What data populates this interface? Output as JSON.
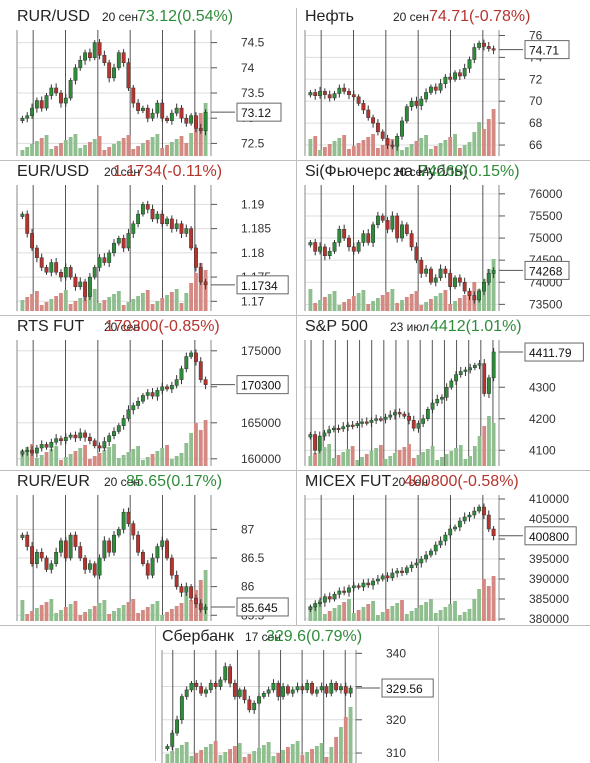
{
  "colors": {
    "up": "#2e8b3a",
    "down": "#b5342e",
    "vol_up": "#8fbf8f",
    "vol_down": "#d48a83",
    "grid": "#555555",
    "hgrid": "#dddddd"
  },
  "panels": [
    {
      "title": "RUR/USD",
      "date": "20 сен",
      "quote": "73.12(0.54%)",
      "quote_color": "#2e8b3a"
    },
    {
      "title": "Нефть",
      "date": "20 сен",
      "quote": "74.71(-0.78%)",
      "quote_color": "#b5342e"
    },
    {
      "title": "EUR/USD",
      "date": "20 сен",
      "quote": "1.1734(-0.11%)",
      "quote_color": "#b5342e"
    },
    {
      "title": "Si(Фьючерс на Рубль)",
      "date": "20 сен",
      "quote": "74268(0.15%)",
      "quote_color": "#2e8b3a"
    },
    {
      "title": "RTS FUT",
      "date": "20 сен",
      "quote": "170300(-0.85%)",
      "quote_color": "#b5342e"
    },
    {
      "title": "S&P 500",
      "date": "23 июл",
      "quote": "4412(1.01%)",
      "quote_color": "#2e8b3a"
    },
    {
      "title": "RUR/EUR",
      "date": "20 сен",
      "quote": "85.65(0.17%)",
      "quote_color": "#2e8b3a"
    },
    {
      "title": "MICEX FUT",
      "date": "20 сен",
      "quote": "400800(-0.58%)",
      "quote_color": "#b5342e"
    },
    {
      "title": "Сбербанк",
      "date": "17 сен",
      "quote": "329.6(0.79%)",
      "quote_color": "#2e8b3a"
    }
  ],
  "chart_data": [
    {
      "type": "candlestick",
      "title": "RUR/USD",
      "yticks": [
        "74.5",
        "74",
        "73.5",
        "73",
        "72.5"
      ],
      "ytick_values": [
        74.5,
        74,
        73.5,
        73,
        72.5
      ],
      "ylim": [
        72.25,
        74.75
      ],
      "last_label": "73.12",
      "last": 73.12,
      "closes": [
        73.0,
        73.05,
        73.2,
        73.35,
        73.2,
        73.45,
        73.6,
        73.5,
        73.3,
        73.4,
        73.75,
        74.0,
        74.15,
        74.3,
        74.2,
        74.5,
        74.25,
        74.1,
        73.8,
        74.0,
        74.3,
        74.1,
        73.6,
        73.3,
        73.15,
        73.2,
        73.0,
        73.1,
        73.3,
        73.0,
        72.95,
        73.1,
        73.2,
        73.0,
        72.9,
        73.05,
        72.8,
        72.75,
        73.12
      ],
      "vertical_lines": 6
    },
    {
      "type": "candlestick",
      "title": "Нефть",
      "yticks": [
        "76",
        "74",
        "72",
        "70",
        "68",
        "66"
      ],
      "ytick_values": [
        76,
        74,
        72,
        70,
        68,
        66
      ],
      "ylim": [
        65,
        76.5
      ],
      "last_label": "74.71",
      "last": 74.71,
      "closes": [
        70.8,
        70.5,
        70.9,
        70.6,
        70.3,
        70.7,
        71.2,
        70.9,
        70.6,
        70.4,
        69.8,
        69.2,
        68.5,
        68.0,
        67.2,
        66.6,
        66.0,
        65.9,
        66.8,
        68.2,
        69.5,
        70.0,
        69.6,
        70.2,
        70.8,
        71.3,
        71.0,
        71.6,
        72.2,
        72.0,
        72.6,
        72.3,
        73.0,
        73.8,
        74.9,
        75.3,
        75.0,
        74.8,
        74.71
      ],
      "vertical_lines": 6
    },
    {
      "type": "candlestick",
      "title": "EUR/USD",
      "yticks": [
        "1.19",
        "1.185",
        "1.18",
        "1.175",
        "1.17"
      ],
      "ytick_values": [
        1.19,
        1.185,
        1.18,
        1.175,
        1.17
      ],
      "ylim": [
        1.168,
        1.194
      ],
      "last_label": "1.1734",
      "last": 1.1734,
      "closes": [
        1.188,
        1.184,
        1.181,
        1.179,
        1.177,
        1.176,
        1.178,
        1.176,
        1.175,
        1.177,
        1.175,
        1.173,
        1.174,
        1.171,
        1.175,
        1.177,
        1.179,
        1.178,
        1.18,
        1.182,
        1.183,
        1.181,
        1.184,
        1.186,
        1.188,
        1.19,
        1.189,
        1.187,
        1.188,
        1.186,
        1.187,
        1.185,
        1.186,
        1.184,
        1.185,
        1.181,
        1.177,
        1.174,
        1.1734
      ],
      "vertical_lines": 6
    },
    {
      "type": "candlestick",
      "title": "Si(Фьючерс на Рубль)",
      "yticks": [
        "76000",
        "75500",
        "75000",
        "74500",
        "74000",
        "73500"
      ],
      "ytick_values": [
        76000,
        75500,
        75000,
        74500,
        74000,
        73500
      ],
      "ylim": [
        73350,
        76200
      ],
      "last_label": "74268",
      "last": 74268,
      "closes": [
        74900,
        74700,
        74800,
        74600,
        74700,
        74900,
        75200,
        75000,
        74800,
        74700,
        74900,
        75100,
        74900,
        75300,
        75500,
        75400,
        75200,
        75500,
        75000,
        75300,
        75100,
        74800,
        74500,
        74200,
        74300,
        74000,
        74100,
        74300,
        74200,
        73900,
        74100,
        74000,
        73800,
        73700,
        73600,
        73800,
        74000,
        74200,
        74268
      ],
      "vertical_lines": 6
    },
    {
      "type": "candlestick",
      "title": "RTS FUT",
      "yticks": [
        "175000",
        "170000",
        "165000",
        "160000"
      ],
      "ytick_values": [
        175000,
        170000,
        165000,
        160000
      ],
      "ylim": [
        159000,
        176500
      ],
      "last_label": "170300",
      "last": 170300,
      "closes": [
        161000,
        161200,
        160800,
        161500,
        162000,
        161600,
        162300,
        162800,
        162500,
        163000,
        163300,
        162900,
        163600,
        163000,
        162500,
        161800,
        161500,
        162400,
        163200,
        163800,
        164600,
        165600,
        166800,
        167400,
        168000,
        168800,
        169200,
        168700,
        169500,
        170000,
        169700,
        170200,
        171000,
        172500,
        174200,
        174700,
        173500,
        171000,
        170300
      ],
      "vertical_lines": 6
    },
    {
      "type": "candlestick",
      "title": "S&P 500",
      "yticks": [
        "4300",
        "4200",
        "4100"
      ],
      "ytick_values": [
        4300,
        4200,
        4100
      ],
      "ylim": [
        4050,
        4450
      ],
      "last_label": "4411.79",
      "last": 4411.79,
      "closes": [
        4150,
        4100,
        4145,
        4155,
        4165,
        4170,
        4168,
        4175,
        4180,
        4178,
        4185,
        4190,
        4188,
        4195,
        4200,
        4198,
        4205,
        4212,
        4220,
        4215,
        4208,
        4195,
        4170,
        4185,
        4200,
        4230,
        4250,
        4262,
        4268,
        4300,
        4320,
        4340,
        4350,
        4355,
        4362,
        4370,
        4375,
        4280,
        4330,
        4412
      ],
      "vertical_lines": 16
    },
    {
      "type": "candlestick",
      "title": "RUR/EUR",
      "yticks": [
        "87",
        "86.5",
        "86",
        "85.5"
      ],
      "ytick_values": [
        87,
        86.5,
        86,
        85.5
      ],
      "ylim": [
        85.4,
        87.6
      ],
      "last_label": "85.645",
      "last": 85.645,
      "closes": [
        86.9,
        86.7,
        86.4,
        86.6,
        86.5,
        86.3,
        86.4,
        86.6,
        86.8,
        86.5,
        86.9,
        86.7,
        86.5,
        86.3,
        86.4,
        86.2,
        86.5,
        86.8,
        86.6,
        86.9,
        87.0,
        87.3,
        87.1,
        86.9,
        86.6,
        86.4,
        86.2,
        86.5,
        86.7,
        86.8,
        86.5,
        86.2,
        86.0,
        85.9,
        86.0,
        85.8,
        85.7,
        85.6,
        85.645
      ],
      "vertical_lines": 6
    },
    {
      "type": "candlestick",
      "title": "MICEX FUT",
      "yticks": [
        "410000",
        "405000",
        "400000",
        "395000",
        "390000",
        "385000",
        "380000"
      ],
      "ytick_values": [
        410000,
        405000,
        400000,
        395000,
        390000,
        385000,
        380000
      ],
      "ylim": [
        379500,
        411000
      ],
      "last_label": "400800",
      "last": 400800,
      "closes": [
        383000,
        383800,
        384200,
        385600,
        385000,
        386200,
        387000,
        386700,
        387800,
        388300,
        388000,
        389000,
        388500,
        389500,
        390000,
        390800,
        390300,
        391500,
        392000,
        391600,
        392800,
        393500,
        394000,
        395000,
        396000,
        397000,
        398500,
        399500,
        401000,
        402500,
        403000,
        404500,
        405500,
        406000,
        407000,
        408000,
        406000,
        402500,
        400800
      ],
      "vertical_lines": 6
    },
    {
      "type": "candlestick",
      "title": "Сбербанк",
      "yticks": [
        "340",
        "330",
        "320",
        "310"
      ],
      "ytick_values": [
        340,
        330,
        320,
        310
      ],
      "ylim": [
        307,
        341
      ],
      "last_label": "329.56",
      "last": 329.56,
      "closes": [
        312,
        316,
        320,
        327,
        329,
        331,
        330,
        328,
        329,
        331,
        330,
        332,
        336,
        331,
        327,
        329,
        326,
        323,
        325,
        327,
        328,
        329,
        331,
        327,
        330,
        328,
        329,
        330,
        329,
        331,
        328,
        329,
        330,
        328,
        331,
        329,
        330,
        328,
        329.56
      ],
      "vertical_lines": 9
    }
  ]
}
